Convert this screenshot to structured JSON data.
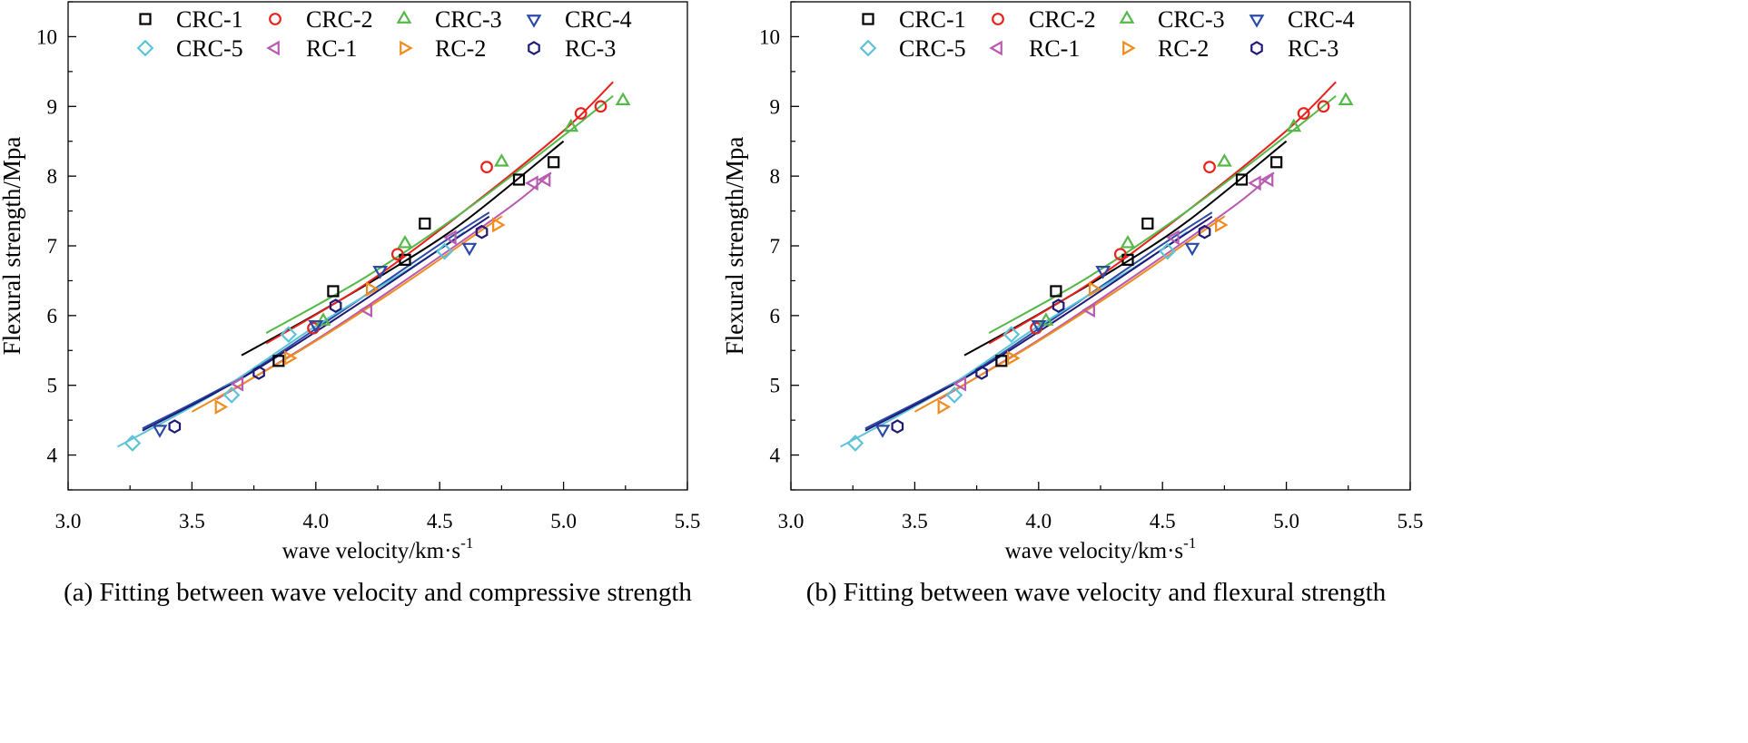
{
  "chart_data": [
    {
      "type": "scatter",
      "title": "",
      "caption": "(a) Fitting between wave velocity and compressive strength",
      "xlabel": "wave velocity/km·s",
      "xlabel_sup": "-1",
      "ylabel": "Flexural strength/Mpa",
      "xlim": [
        3.0,
        5.5
      ],
      "ylim": [
        3.5,
        10.5
      ],
      "x_ticks": [
        "3.0",
        "3.5",
        "4.0",
        "4.5",
        "5.0",
        "5.5"
      ],
      "y_ticks": [
        "4",
        "5",
        "6",
        "7",
        "8",
        "9",
        "10"
      ],
      "grid": false,
      "legend_position": "top",
      "series": [
        {
          "name": "CRC-1",
          "marker": "square",
          "color": "#000000",
          "points": [
            [
              3.85,
              5.35
            ],
            [
              4.07,
              6.35
            ],
            [
              4.36,
              6.8
            ],
            [
              4.44,
              7.32
            ],
            [
              4.82,
              7.95
            ],
            [
              4.96,
              8.2
            ]
          ],
          "fit": [
            [
              3.7,
              5.43
            ],
            [
              4.0,
              6.02
            ],
            [
              4.3,
              6.65
            ],
            [
              4.6,
              7.35
            ],
            [
              5.0,
              8.5
            ]
          ]
        },
        {
          "name": "CRC-2",
          "marker": "circle",
          "color": "#e8221c",
          "points": [
            [
              3.99,
              5.82
            ],
            [
              4.33,
              6.88
            ],
            [
              4.69,
              8.13
            ],
            [
              5.07,
              8.9
            ],
            [
              5.15,
              9.0
            ]
          ],
          "fit": [
            [
              3.8,
              5.6
            ],
            [
              4.2,
              6.45
            ],
            [
              4.6,
              7.5
            ],
            [
              5.0,
              8.65
            ],
            [
              5.2,
              9.35
            ]
          ]
        },
        {
          "name": "CRC-3",
          "marker": "triangle-up",
          "color": "#54b948",
          "points": [
            [
              4.03,
              5.92
            ],
            [
              4.36,
              7.03
            ],
            [
              4.75,
              8.2
            ],
            [
              5.03,
              8.7
            ],
            [
              5.24,
              9.08
            ]
          ],
          "fit": [
            [
              3.8,
              5.75
            ],
            [
              4.2,
              6.55
            ],
            [
              4.6,
              7.5
            ],
            [
              5.0,
              8.58
            ],
            [
              5.2,
              9.15
            ]
          ]
        },
        {
          "name": "CRC-4",
          "marker": "triangle-down",
          "color": "#2b4aa6",
          "points": [
            [
              3.37,
              4.37
            ],
            [
              4.0,
              5.87
            ],
            [
              4.26,
              6.65
            ],
            [
              4.62,
              6.98
            ]
          ],
          "fit": [
            [
              3.3,
              4.38
            ],
            [
              3.7,
              5.12
            ],
            [
              4.1,
              6.05
            ],
            [
              4.5,
              7.02
            ],
            [
              4.7,
              7.48
            ]
          ]
        },
        {
          "name": "CRC-5",
          "marker": "diamond",
          "color": "#5ec3d7",
          "points": [
            [
              3.26,
              4.17
            ],
            [
              3.66,
              4.86
            ],
            [
              3.89,
              5.73
            ],
            [
              4.52,
              6.92
            ]
          ],
          "fit": [
            [
              3.2,
              4.12
            ],
            [
              3.6,
              4.9
            ],
            [
              4.0,
              5.85
            ],
            [
              4.4,
              6.72
            ],
            [
              4.6,
              7.2
            ]
          ]
        },
        {
          "name": "RC-1",
          "marker": "triangle-left",
          "color": "#b85bb0",
          "points": [
            [
              3.69,
              5.02
            ],
            [
              4.21,
              6.08
            ],
            [
              4.55,
              7.12
            ],
            [
              4.88,
              7.9
            ],
            [
              4.93,
              7.95
            ]
          ],
          "fit": [
            [
              3.6,
              4.8
            ],
            [
              4.0,
              5.65
            ],
            [
              4.4,
              6.6
            ],
            [
              4.8,
              7.6
            ],
            [
              4.95,
              8.05
            ]
          ]
        },
        {
          "name": "RC-2",
          "marker": "triangle-right",
          "color": "#f08c1e",
          "points": [
            [
              3.61,
              4.69
            ],
            [
              3.89,
              5.39
            ],
            [
              4.22,
              6.38
            ],
            [
              4.73,
              7.3
            ]
          ],
          "fit": [
            [
              3.5,
              4.62
            ],
            [
              3.9,
              5.42
            ],
            [
              4.3,
              6.32
            ],
            [
              4.7,
              7.3
            ],
            [
              4.75,
              7.42
            ]
          ]
        },
        {
          "name": "RC-3",
          "marker": "hexagon",
          "color": "#1e1a78",
          "points": [
            [
              3.43,
              4.41
            ],
            [
              3.77,
              5.18
            ],
            [
              4.08,
              6.14
            ],
            [
              4.67,
              7.2
            ]
          ],
          "fit": [
            [
              3.3,
              4.35
            ],
            [
              3.7,
              5.1
            ],
            [
              4.1,
              6.0
            ],
            [
              4.5,
              6.95
            ],
            [
              4.7,
              7.42
            ]
          ]
        }
      ]
    },
    {
      "type": "scatter",
      "title": "",
      "caption": "(b) Fitting between wave velocity and flexural strength",
      "xlabel": "wave velocity/km·s",
      "xlabel_sup": "-1",
      "ylabel": "Flexural strength/Mpa",
      "xlim": [
        3.0,
        5.5
      ],
      "ylim": [
        3.5,
        10.5
      ],
      "x_ticks": [
        "3.0",
        "3.5",
        "4.0",
        "4.5",
        "5.0",
        "5.5"
      ],
      "y_ticks": [
        "4",
        "5",
        "6",
        "7",
        "8",
        "9",
        "10"
      ],
      "grid": false,
      "legend_position": "top",
      "series": [
        {
          "name": "CRC-1",
          "marker": "square",
          "color": "#000000",
          "points": [
            [
              3.85,
              5.35
            ],
            [
              4.07,
              6.35
            ],
            [
              4.36,
              6.8
            ],
            [
              4.44,
              7.32
            ],
            [
              4.82,
              7.95
            ],
            [
              4.96,
              8.2
            ]
          ],
          "fit": [
            [
              3.7,
              5.43
            ],
            [
              4.0,
              6.02
            ],
            [
              4.3,
              6.65
            ],
            [
              4.6,
              7.35
            ],
            [
              5.0,
              8.5
            ]
          ]
        },
        {
          "name": "CRC-2",
          "marker": "circle",
          "color": "#e8221c",
          "points": [
            [
              3.99,
              5.82
            ],
            [
              4.33,
              6.88
            ],
            [
              4.69,
              8.13
            ],
            [
              5.07,
              8.9
            ],
            [
              5.15,
              9.0
            ]
          ],
          "fit": [
            [
              3.8,
              5.6
            ],
            [
              4.2,
              6.45
            ],
            [
              4.6,
              7.5
            ],
            [
              5.0,
              8.65
            ],
            [
              5.2,
              9.35
            ]
          ]
        },
        {
          "name": "CRC-3",
          "marker": "triangle-up",
          "color": "#54b948",
          "points": [
            [
              4.03,
              5.92
            ],
            [
              4.36,
              7.03
            ],
            [
              4.75,
              8.2
            ],
            [
              5.03,
              8.7
            ],
            [
              5.24,
              9.08
            ]
          ],
          "fit": [
            [
              3.8,
              5.75
            ],
            [
              4.2,
              6.55
            ],
            [
              4.6,
              7.5
            ],
            [
              5.0,
              8.58
            ],
            [
              5.2,
              9.15
            ]
          ]
        },
        {
          "name": "CRC-4",
          "marker": "triangle-down",
          "color": "#2b4aa6",
          "points": [
            [
              3.37,
              4.37
            ],
            [
              4.0,
              5.87
            ],
            [
              4.26,
              6.65
            ],
            [
              4.62,
              6.98
            ]
          ],
          "fit": [
            [
              3.3,
              4.38
            ],
            [
              3.7,
              5.12
            ],
            [
              4.1,
              6.05
            ],
            [
              4.5,
              7.02
            ],
            [
              4.7,
              7.48
            ]
          ]
        },
        {
          "name": "CRC-5",
          "marker": "diamond",
          "color": "#5ec3d7",
          "points": [
            [
              3.26,
              4.17
            ],
            [
              3.66,
              4.86
            ],
            [
              3.89,
              5.73
            ],
            [
              4.52,
              6.92
            ]
          ],
          "fit": [
            [
              3.2,
              4.12
            ],
            [
              3.6,
              4.9
            ],
            [
              4.0,
              5.85
            ],
            [
              4.4,
              6.72
            ],
            [
              4.6,
              7.2
            ]
          ]
        },
        {
          "name": "RC-1",
          "marker": "triangle-left",
          "color": "#b85bb0",
          "points": [
            [
              3.69,
              5.02
            ],
            [
              4.21,
              6.08
            ],
            [
              4.55,
              7.12
            ],
            [
              4.88,
              7.9
            ],
            [
              4.93,
              7.95
            ]
          ],
          "fit": [
            [
              3.6,
              4.8
            ],
            [
              4.0,
              5.65
            ],
            [
              4.4,
              6.6
            ],
            [
              4.8,
              7.6
            ],
            [
              4.95,
              8.05
            ]
          ]
        },
        {
          "name": "RC-2",
          "marker": "triangle-right",
          "color": "#f08c1e",
          "points": [
            [
              3.61,
              4.69
            ],
            [
              3.89,
              5.39
            ],
            [
              4.22,
              6.38
            ],
            [
              4.73,
              7.3
            ]
          ],
          "fit": [
            [
              3.5,
              4.62
            ],
            [
              3.9,
              5.42
            ],
            [
              4.3,
              6.32
            ],
            [
              4.7,
              7.3
            ],
            [
              4.75,
              7.42
            ]
          ]
        },
        {
          "name": "RC-3",
          "marker": "hexagon",
          "color": "#1e1a78",
          "points": [
            [
              3.43,
              4.41
            ],
            [
              3.77,
              5.18
            ],
            [
              4.08,
              6.14
            ],
            [
              4.67,
              7.2
            ]
          ],
          "fit": [
            [
              3.3,
              4.35
            ],
            [
              3.7,
              5.1
            ],
            [
              4.1,
              6.0
            ],
            [
              4.5,
              6.95
            ],
            [
              4.7,
              7.42
            ]
          ]
        }
      ]
    }
  ]
}
